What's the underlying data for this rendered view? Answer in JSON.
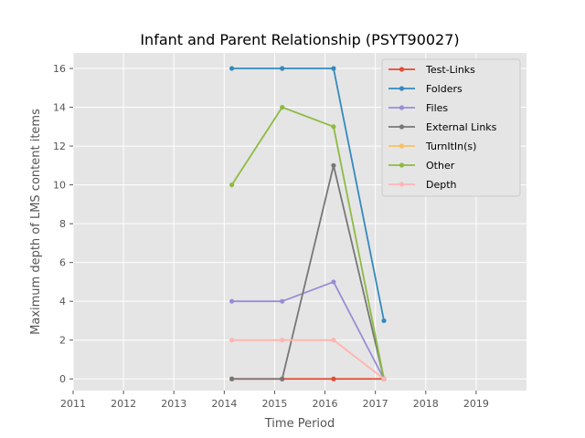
{
  "chart_data": {
    "type": "line",
    "title": "Infant and Parent Relationship (PSYT90027)",
    "xlabel": "Time Period",
    "ylabel": "Maximum depth of LMS content items",
    "xlim": [
      2011,
      2020
    ],
    "ylim": [
      -0.6,
      16.8
    ],
    "xticks": [
      2011,
      2012,
      2013,
      2014,
      2015,
      2016,
      2017,
      2018,
      2019
    ],
    "yticks": [
      0,
      2,
      4,
      6,
      8,
      10,
      12,
      14,
      16
    ],
    "grid": true,
    "legend_position": "top-right",
    "x": [
      2014.15,
      2015.15,
      2016.17,
      2017.17
    ],
    "series": [
      {
        "name": "Test-Links",
        "color": "#E24A33",
        "values": [
          0,
          0,
          0,
          0
        ]
      },
      {
        "name": "Folders",
        "color": "#348ABD",
        "values": [
          16,
          16,
          16,
          3
        ]
      },
      {
        "name": "Files",
        "color": "#988ED5",
        "values": [
          4,
          4,
          5,
          0
        ]
      },
      {
        "name": "External Links",
        "color": "#777777",
        "values": [
          0,
          0,
          11,
          0
        ]
      },
      {
        "name": "TurnItIn(s)",
        "color": "#FBC15E",
        "values": [
          2,
          2,
          2,
          0
        ]
      },
      {
        "name": "Other",
        "color": "#8EBA42",
        "values": [
          10,
          14,
          13,
          0
        ]
      },
      {
        "name": "Depth",
        "color": "#FFB5B8",
        "values": [
          2,
          2,
          2,
          0
        ]
      }
    ]
  }
}
